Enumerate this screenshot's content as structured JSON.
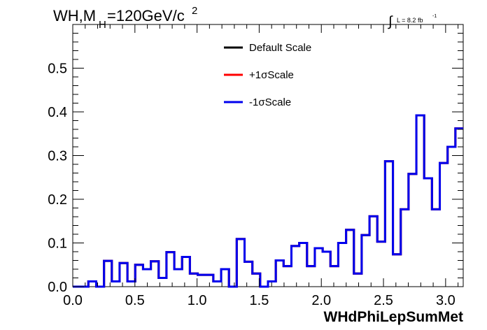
{
  "chart_data": {
    "type": "step-histogram",
    "title_main": "WH,M",
    "title_sub": "H",
    "title_rest": "=120GeV/c",
    "title_sup": "2",
    "lumi_integral": "∫",
    "lumi_text": "L = 8.2 fb",
    "lumi_sup": "-1",
    "xlabel": "WHdPhiLepSumMet",
    "ylabel": "",
    "xlim": [
      0,
      3.1416
    ],
    "ylim": [
      0,
      0.6
    ],
    "x_ticks": [
      "0.0",
      "0.5",
      "1.0",
      "1.5",
      "2.0",
      "2.5",
      "3.0"
    ],
    "y_ticks": [
      "0.0",
      "0.1",
      "0.2",
      "0.3",
      "0.4",
      "0.5"
    ],
    "legend_position": "top-center",
    "bin_edges_n": 50,
    "series": [
      {
        "name": "Default Scale",
        "color": "#000000",
        "values": [
          0.0,
          0.0,
          0.012,
          0.0,
          0.059,
          0.012,
          0.054,
          0.012,
          0.05,
          0.04,
          0.058,
          0.02,
          0.079,
          0.04,
          0.068,
          0.03,
          0.027,
          0.027,
          0.012,
          0.04,
          0.0,
          0.109,
          0.057,
          0.03,
          0.0,
          0.012,
          0.06,
          0.047,
          0.093,
          0.1,
          0.047,
          0.088,
          0.08,
          0.047,
          0.1,
          0.13,
          0.03,
          0.118,
          0.161,
          0.103,
          0.287,
          0.074,
          0.177,
          0.258,
          0.392,
          0.248,
          0.177,
          0.283,
          0.32,
          0.362
        ]
      },
      {
        "name": "+1σScale",
        "color": "#ff0000",
        "values": [
          0.0,
          0.0,
          0.012,
          0.0,
          0.059,
          0.012,
          0.054,
          0.012,
          0.05,
          0.04,
          0.058,
          0.02,
          0.079,
          0.04,
          0.068,
          0.03,
          0.027,
          0.027,
          0.012,
          0.04,
          0.0,
          0.109,
          0.057,
          0.03,
          0.0,
          0.012,
          0.06,
          0.047,
          0.093,
          0.1,
          0.047,
          0.088,
          0.08,
          0.047,
          0.1,
          0.13,
          0.03,
          0.118,
          0.161,
          0.103,
          0.287,
          0.074,
          0.177,
          0.258,
          0.392,
          0.248,
          0.177,
          0.283,
          0.32,
          0.362
        ]
      },
      {
        "name": "-1σScale",
        "color": "#0000ee",
        "values": [
          0.0,
          0.0,
          0.012,
          0.0,
          0.059,
          0.012,
          0.054,
          0.012,
          0.05,
          0.04,
          0.058,
          0.02,
          0.079,
          0.04,
          0.068,
          0.03,
          0.027,
          0.027,
          0.012,
          0.04,
          0.0,
          0.109,
          0.057,
          0.03,
          0.0,
          0.012,
          0.06,
          0.047,
          0.093,
          0.1,
          0.047,
          0.088,
          0.08,
          0.047,
          0.1,
          0.13,
          0.03,
          0.118,
          0.161,
          0.103,
          0.287,
          0.074,
          0.177,
          0.258,
          0.392,
          0.248,
          0.177,
          0.283,
          0.32,
          0.362
        ]
      }
    ]
  }
}
